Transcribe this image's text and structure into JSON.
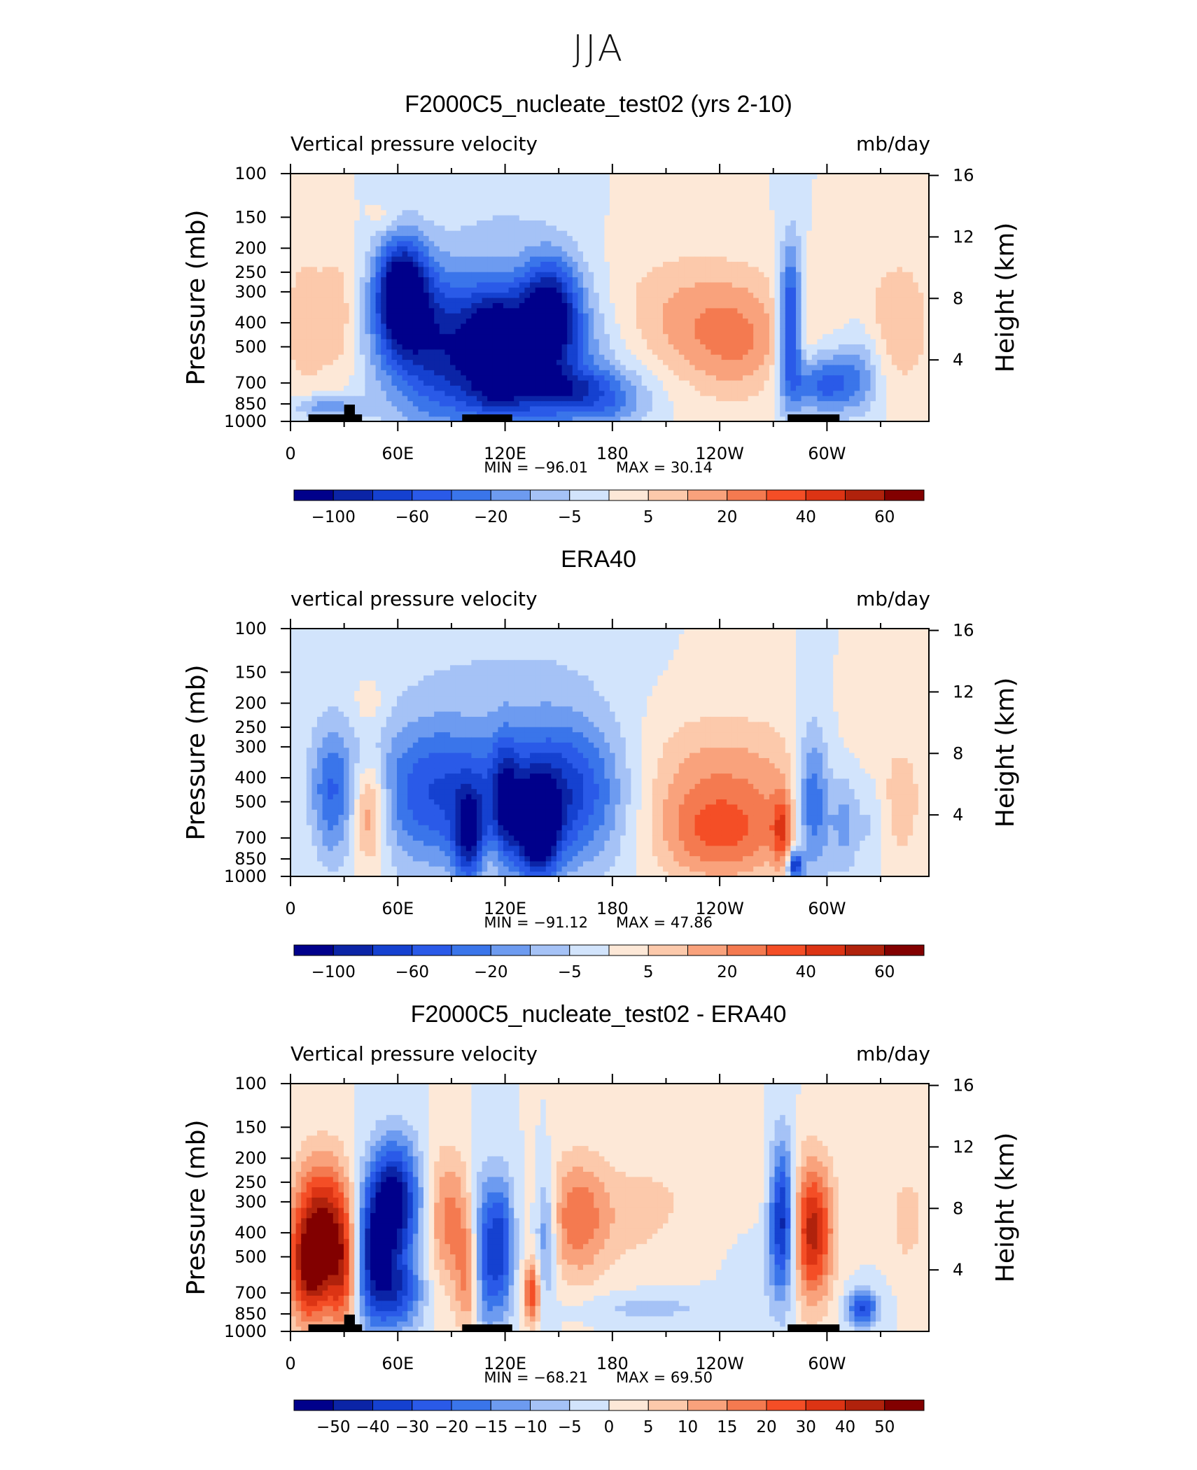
{
  "page": {
    "title": "JJA"
  },
  "panels": [
    {
      "title": "F2000C5_nucleate_test02 (yrs 2-10)",
      "left_label": "Vertical pressure velocity",
      "right_label": "mb/day",
      "min_label": "MIN  =  −96.01",
      "max_label": "MAX  =   30.14"
    },
    {
      "title": "ERA40",
      "left_label": "vertical pressure velocity",
      "right_label": "mb/day",
      "min_label": "MIN  =  −91.12",
      "max_label": "MAX  =   47.86"
    },
    {
      "title": "F2000C5_nucleate_test02 - ERA40",
      "left_label": "Vertical pressure velocity",
      "right_label": "mb/day",
      "min_label": "MIN  =  −68.21",
      "max_label": "MAX  =   69.50"
    }
  ],
  "axes": {
    "ylabel_left": "Pressure  (mb)",
    "ylabel_right": "Height  (km)",
    "x_ticks": [
      {
        "lon": 0,
        "label": "0"
      },
      {
        "lon": 60,
        "label": "60E"
      },
      {
        "lon": 120,
        "label": "120E"
      },
      {
        "lon": 180,
        "label": "180"
      },
      {
        "lon": 240,
        "label": "120W"
      },
      {
        "lon": 300,
        "label": "60W"
      }
    ],
    "x_minor": [
      30,
      90,
      150,
      210,
      270,
      330
    ],
    "x_range": [
      0,
      357
    ],
    "p_ticks": [
      100,
      150,
      200,
      250,
      300,
      400,
      500,
      700,
      850,
      1000
    ],
    "p_range": [
      1000,
      100
    ],
    "y_scale": "log",
    "h_ticks": [
      4,
      8,
      12,
      16
    ]
  },
  "colorbars": [
    {
      "colors": [
        "#00008b",
        "#0b24a6",
        "#1541d0",
        "#2a5ae8",
        "#3a75ea",
        "#6d9bf0",
        "#a5c2f6",
        "#d2e4fc",
        "#fde8d7",
        "#fcc9ab",
        "#f9a27c",
        "#f47a50",
        "#f44e26",
        "#dc3414",
        "#b0220c",
        "#820000"
      ],
      "labels": [
        "−100",
        "−60",
        "−20",
        "−5",
        "5",
        "20",
        "40",
        "60"
      ]
    },
    {
      "colors": [
        "#00008b",
        "#0b24a6",
        "#1541d0",
        "#2a5ae8",
        "#3a75ea",
        "#6d9bf0",
        "#a5c2f6",
        "#d2e4fc",
        "#fde8d7",
        "#fcc9ab",
        "#f9a27c",
        "#f47a50",
        "#f44e26",
        "#dc3414",
        "#b0220c",
        "#820000"
      ],
      "labels": [
        "−100",
        "−60",
        "−20",
        "−5",
        "5",
        "20",
        "40",
        "60"
      ]
    },
    {
      "colors": [
        "#00008b",
        "#0b24a6",
        "#1541d0",
        "#2a5ae8",
        "#3a75ea",
        "#6d9bf0",
        "#a5c2f6",
        "#d2e4fc",
        "#fde8d7",
        "#fcc9ab",
        "#f9a27c",
        "#f47a50",
        "#f44e26",
        "#dc3414",
        "#b0220c",
        "#820000"
      ],
      "labels": [
        "−50",
        "−40",
        "−30",
        "−20",
        "−15",
        "−10",
        "−5",
        "0",
        "5",
        "10",
        "15",
        "20",
        "30",
        "40",
        "50"
      ]
    }
  ],
  "chart_data": [
    {
      "type": "heatmap",
      "title": "F2000C5_nucleate_test02 (yrs 2-10)",
      "variable": "Vertical pressure velocity",
      "units": "mb/day",
      "min": -96.01,
      "max": 30.14,
      "features": [
        {
          "lon": 8,
          "p": 400,
          "dlon": 10,
          "logp": 0.55,
          "value": 18
        },
        {
          "lon": 28,
          "p": 380,
          "dlon": 8,
          "logp": 0.45,
          "value": 20
        },
        {
          "lon": 52,
          "p": 150,
          "dlon": 6,
          "logp": 0.1,
          "value": 10
        },
        {
          "lon": 20,
          "p": 870,
          "dlon": 14,
          "logp": 0.08,
          "value": -35
        },
        {
          "lon": 62,
          "p": 300,
          "dlon": 10,
          "logp": 0.35,
          "value": -96
        },
        {
          "lon": 75,
          "p": 450,
          "dlon": 22,
          "logp": 0.5,
          "value": -45
        },
        {
          "lon": 100,
          "p": 550,
          "dlon": 25,
          "logp": 0.55,
          "value": -40
        },
        {
          "lon": 140,
          "p": 550,
          "dlon": 30,
          "logp": 0.5,
          "value": -50
        },
        {
          "lon": 145,
          "p": 350,
          "dlon": 12,
          "logp": 0.35,
          "value": -75
        },
        {
          "lon": 115,
          "p": 500,
          "dlon": 10,
          "logp": 0.35,
          "value": -55
        },
        {
          "lon": 160,
          "p": 750,
          "dlon": 25,
          "logp": 0.15,
          "value": -45
        },
        {
          "lon": 180,
          "p": 900,
          "dlon": 14,
          "logp": 0.1,
          "value": -15
        },
        {
          "lon": 120,
          "p": 150,
          "dlon": 20,
          "logp": 0.2,
          "value": -8
        },
        {
          "lon": 100,
          "p": 950,
          "dlon": 10,
          "logp": 0.05,
          "value": 6
        },
        {
          "lon": 225,
          "p": 380,
          "dlon": 38,
          "logp": 0.42,
          "value": 28
        },
        {
          "lon": 250,
          "p": 500,
          "dlon": 20,
          "logp": 0.35,
          "value": 22
        },
        {
          "lon": 280,
          "p": 400,
          "dlon": 5,
          "logp": 0.5,
          "value": -80
        },
        {
          "lon": 300,
          "p": 700,
          "dlon": 14,
          "logp": 0.2,
          "value": -55
        },
        {
          "lon": 287,
          "p": 400,
          "dlon": 4,
          "logp": 0.4,
          "value": 18
        },
        {
          "lon": 340,
          "p": 400,
          "dlon": 14,
          "logp": 0.45,
          "value": 22
        },
        {
          "lon": 320,
          "p": 600,
          "dlon": 8,
          "logp": 0.3,
          "value": -20
        }
      ]
    },
    {
      "type": "heatmap",
      "title": "ERA40",
      "variable": "vertical pressure velocity",
      "units": "mb/day",
      "min": -91.12,
      "max": 47.86,
      "features": [
        {
          "lon": 22,
          "p": 450,
          "dlon": 10,
          "logp": 0.45,
          "value": -45
        },
        {
          "lon": 12,
          "p": 500,
          "dlon": 6,
          "logp": 0.5,
          "value": 8
        },
        {
          "lon": 44,
          "p": 550,
          "dlon": 7,
          "logp": 0.35,
          "value": 45
        },
        {
          "lon": 44,
          "p": 200,
          "dlon": 6,
          "logp": 0.15,
          "value": 12
        },
        {
          "lon": 80,
          "p": 450,
          "dlon": 25,
          "logp": 0.5,
          "value": -55
        },
        {
          "lon": 100,
          "p": 700,
          "dlon": 6,
          "logp": 0.3,
          "value": -60
        },
        {
          "lon": 110,
          "p": 850,
          "dlon": 6,
          "logp": 0.15,
          "value": 12
        },
        {
          "lon": 120,
          "p": 500,
          "dlon": 5,
          "logp": 0.4,
          "value": -40
        },
        {
          "lon": 150,
          "p": 450,
          "dlon": 28,
          "logp": 0.5,
          "value": -70
        },
        {
          "lon": 138,
          "p": 650,
          "dlon": 8,
          "logp": 0.3,
          "value": -85
        },
        {
          "lon": 120,
          "p": 150,
          "dlon": 40,
          "logp": 0.25,
          "value": -10
        },
        {
          "lon": 240,
          "p": 420,
          "dlon": 40,
          "logp": 0.45,
          "value": 30
        },
        {
          "lon": 240,
          "p": 700,
          "dlon": 25,
          "logp": 0.3,
          "value": 35
        },
        {
          "lon": 275,
          "p": 650,
          "dlon": 4,
          "logp": 0.25,
          "value": 40
        },
        {
          "lon": 282,
          "p": 900,
          "dlon": 3,
          "logp": 0.1,
          "value": -70
        },
        {
          "lon": 292,
          "p": 500,
          "dlon": 7,
          "logp": 0.5,
          "value": -55
        },
        {
          "lon": 310,
          "p": 600,
          "dlon": 6,
          "logp": 0.35,
          "value": -30
        },
        {
          "lon": 342,
          "p": 500,
          "dlon": 10,
          "logp": 0.5,
          "value": 15
        },
        {
          "lon": 325,
          "p": 600,
          "dlon": 5,
          "logp": 0.3,
          "value": -15
        }
      ]
    },
    {
      "type": "heatmap",
      "title": "F2000C5_nucleate_test02 - ERA40",
      "variable": "Vertical pressure velocity",
      "units": "mb/day",
      "min": -68.21,
      "max": 69.5,
      "features": [
        {
          "lon": 18,
          "p": 380,
          "dlon": 12,
          "logp": 0.45,
          "value": 60
        },
        {
          "lon": 10,
          "p": 600,
          "dlon": 8,
          "logp": 0.35,
          "value": 40
        },
        {
          "lon": 30,
          "p": 600,
          "dlon": 6,
          "logp": 0.4,
          "value": 35
        },
        {
          "lon": 45,
          "p": 500,
          "dlon": 8,
          "logp": 0.45,
          "value": -50
        },
        {
          "lon": 58,
          "p": 300,
          "dlon": 10,
          "logp": 0.4,
          "value": -68
        },
        {
          "lon": 60,
          "p": 700,
          "dlon": 10,
          "logp": 0.25,
          "value": -40
        },
        {
          "lon": 88,
          "p": 350,
          "dlon": 8,
          "logp": 0.45,
          "value": 30
        },
        {
          "lon": 100,
          "p": 600,
          "dlon": 5,
          "logp": 0.4,
          "value": 30
        },
        {
          "lon": 108,
          "p": 500,
          "dlon": 5,
          "logp": 0.5,
          "value": -40
        },
        {
          "lon": 118,
          "p": 450,
          "dlon": 5,
          "logp": 0.45,
          "value": -45
        },
        {
          "lon": 135,
          "p": 700,
          "dlon": 3,
          "logp": 0.2,
          "value": 45
        },
        {
          "lon": 143,
          "p": 400,
          "dlon": 4,
          "logp": 0.4,
          "value": -30
        },
        {
          "lon": 160,
          "p": 350,
          "dlon": 12,
          "logp": 0.4,
          "value": 30
        },
        {
          "lon": 190,
          "p": 350,
          "dlon": 20,
          "logp": 0.35,
          "value": 10
        },
        {
          "lon": 200,
          "p": 800,
          "dlon": 28,
          "logp": 0.1,
          "value": -12
        },
        {
          "lon": 260,
          "p": 600,
          "dlon": 10,
          "logp": 0.4,
          "value": -5
        },
        {
          "lon": 275,
          "p": 350,
          "dlon": 5,
          "logp": 0.5,
          "value": -60
        },
        {
          "lon": 292,
          "p": 400,
          "dlon": 8,
          "logp": 0.45,
          "value": 55
        },
        {
          "lon": 320,
          "p": 800,
          "dlon": 6,
          "logp": 0.12,
          "value": -45
        },
        {
          "lon": 345,
          "p": 350,
          "dlon": 6,
          "logp": 0.3,
          "value": 15
        },
        {
          "lon": 240,
          "p": 250,
          "dlon": 40,
          "logp": 0.35,
          "value": 6
        }
      ]
    }
  ],
  "colors": {
    "axis": "#000000",
    "topography": "#000000"
  }
}
